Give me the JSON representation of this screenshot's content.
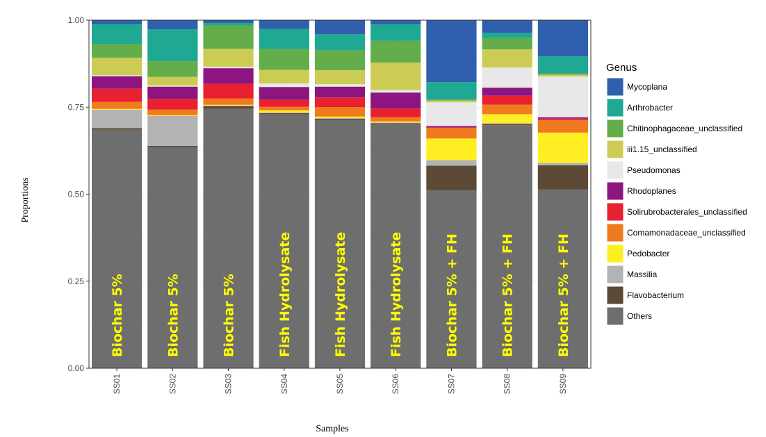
{
  "chart_data": {
    "type": "bar",
    "stacked": true,
    "xlabel": "Samples",
    "ylabel": "Proportions",
    "ylim": [
      0,
      1
    ],
    "yticks": [
      "0.00",
      "0.25",
      "0.50",
      "0.75",
      "1.00"
    ],
    "grid": true,
    "categories": [
      "SS01",
      "SS02",
      "SS03",
      "SS04",
      "SS05",
      "SS06",
      "SS07",
      "SS08",
      "SS09"
    ],
    "bar_labels": [
      "Biochar 5%",
      "Biochar 5%",
      "Biochar 5%",
      "Fish Hydrolysate",
      "Fish Hydrolysate",
      "Fish Hydrolysate",
      "Biochar 5% + FH",
      "Biochar 5% + FH",
      "Biochar 5% + FH"
    ],
    "bar_label_color": "#ffff00",
    "legend": {
      "title": "Genus",
      "placement": "right"
    },
    "series": [
      {
        "name": "Others",
        "color": "#6e6e6e",
        "values": [
          0.685,
          0.635,
          0.745,
          0.729,
          0.713,
          0.7,
          0.512,
          0.698,
          0.514
        ]
      },
      {
        "name": "Flavobacterium",
        "color": "#5c4a36",
        "values": [
          0.005,
          0.004,
          0.008,
          0.004,
          0.004,
          0.004,
          0.07,
          0.004,
          0.069
        ]
      },
      {
        "name": "Massilia",
        "color": "#b3b3b3",
        "values": [
          0.053,
          0.086,
          0.002,
          0.002,
          0.002,
          0.002,
          0.016,
          0.002,
          0.007
        ]
      },
      {
        "name": "Pedobacter",
        "color": "#ffee22",
        "values": [
          0.002,
          0.002,
          0.002,
          0.006,
          0.004,
          0.003,
          0.062,
          0.026,
          0.087
        ]
      },
      {
        "name": "Comamonadaceae_unclassified",
        "color": "#f07a1e",
        "values": [
          0.02,
          0.016,
          0.018,
          0.01,
          0.027,
          0.012,
          0.03,
          0.027,
          0.036
        ]
      },
      {
        "name": "Solirubrobacterales_unclassified",
        "color": "#e82030",
        "values": [
          0.038,
          0.031,
          0.042,
          0.02,
          0.028,
          0.025,
          0.002,
          0.026,
          0.004
        ]
      },
      {
        "name": "Rhodoplanes",
        "color": "#8c1580",
        "values": [
          0.036,
          0.035,
          0.045,
          0.037,
          0.031,
          0.046,
          0.004,
          0.023,
          0.004
        ]
      },
      {
        "name": "Pseudomonas",
        "color": "#e8e8e8",
        "values": [
          0.003,
          0.003,
          0.004,
          0.01,
          0.007,
          0.007,
          0.068,
          0.058,
          0.117
        ]
      },
      {
        "name": "iii1.15_unclassified",
        "color": "#cccc55",
        "values": [
          0.05,
          0.025,
          0.052,
          0.039,
          0.04,
          0.079,
          0.005,
          0.052,
          0.005
        ]
      },
      {
        "name": "Chitinophagaceae_unclassified",
        "color": "#63ad4a",
        "values": [
          0.04,
          0.045,
          0.067,
          0.06,
          0.058,
          0.063,
          0.003,
          0.033,
          0.004
        ]
      },
      {
        "name": "Arthrobacter",
        "color": "#1fa894",
        "values": [
          0.056,
          0.092,
          0.007,
          0.058,
          0.046,
          0.047,
          0.05,
          0.015,
          0.049
        ]
      },
      {
        "name": "Mycoplana",
        "color": "#2f5fad",
        "values": [
          0.012,
          0.026,
          0.008,
          0.025,
          0.04,
          0.012,
          0.178,
          0.036,
          0.104
        ]
      }
    ],
    "legend_order": [
      "Mycoplana",
      "Arthrobacter",
      "Chitinophagaceae_unclassified",
      "iii1.15_unclassified",
      "Pseudomonas",
      "Rhodoplanes",
      "Solirubrobacterales_unclassified",
      "Comamonadaceae_unclassified",
      "Pedobacter",
      "Massilia",
      "Flavobacterium",
      "Others"
    ]
  }
}
